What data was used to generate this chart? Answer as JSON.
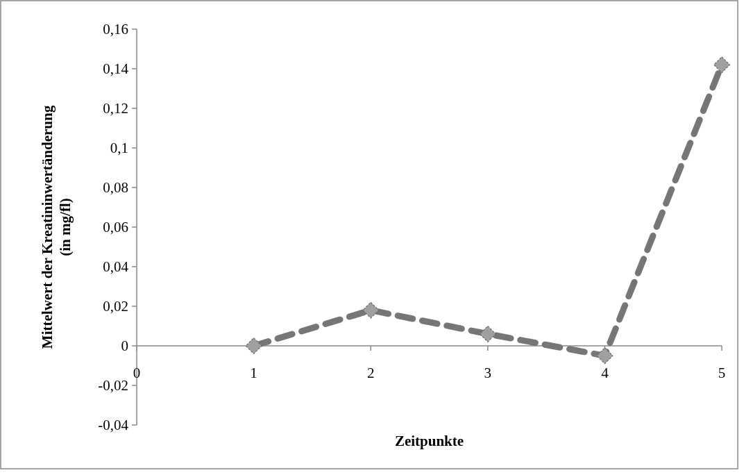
{
  "chart_data": {
    "type": "line",
    "xlabel": "Zeitpunkte",
    "ylabel": "Mittelwert der Kreatininwertänderung\n(in mg/fl)",
    "x": [
      1,
      2,
      3,
      4,
      5
    ],
    "series": [
      {
        "color": "#767676",
        "values": [
          0,
          0.018,
          0.006,
          -0.005,
          0.142
        ]
      }
    ],
    "xlim": [
      0,
      5
    ],
    "xticks": [
      0,
      1,
      2,
      3,
      4,
      5
    ],
    "ylim": [
      -0.04,
      0.16
    ],
    "yticks": [
      {
        "value": -0.04,
        "label": "-0,04"
      },
      {
        "value": -0.02,
        "label": "-0,02"
      },
      {
        "value": 0,
        "label": "0"
      },
      {
        "value": 0.02,
        "label": "0,02"
      },
      {
        "value": 0.04,
        "label": "0,04"
      },
      {
        "value": 0.06,
        "label": "0,06"
      },
      {
        "value": 0.08,
        "label": "0,08"
      },
      {
        "value": 0.1,
        "label": "0,1"
      },
      {
        "value": 0.12,
        "label": "0,12"
      },
      {
        "value": 0.14,
        "label": "0,14"
      },
      {
        "value": 0.16,
        "label": "0,16"
      }
    ],
    "grid": false,
    "marker": "diamond",
    "line_style": "dashed"
  }
}
